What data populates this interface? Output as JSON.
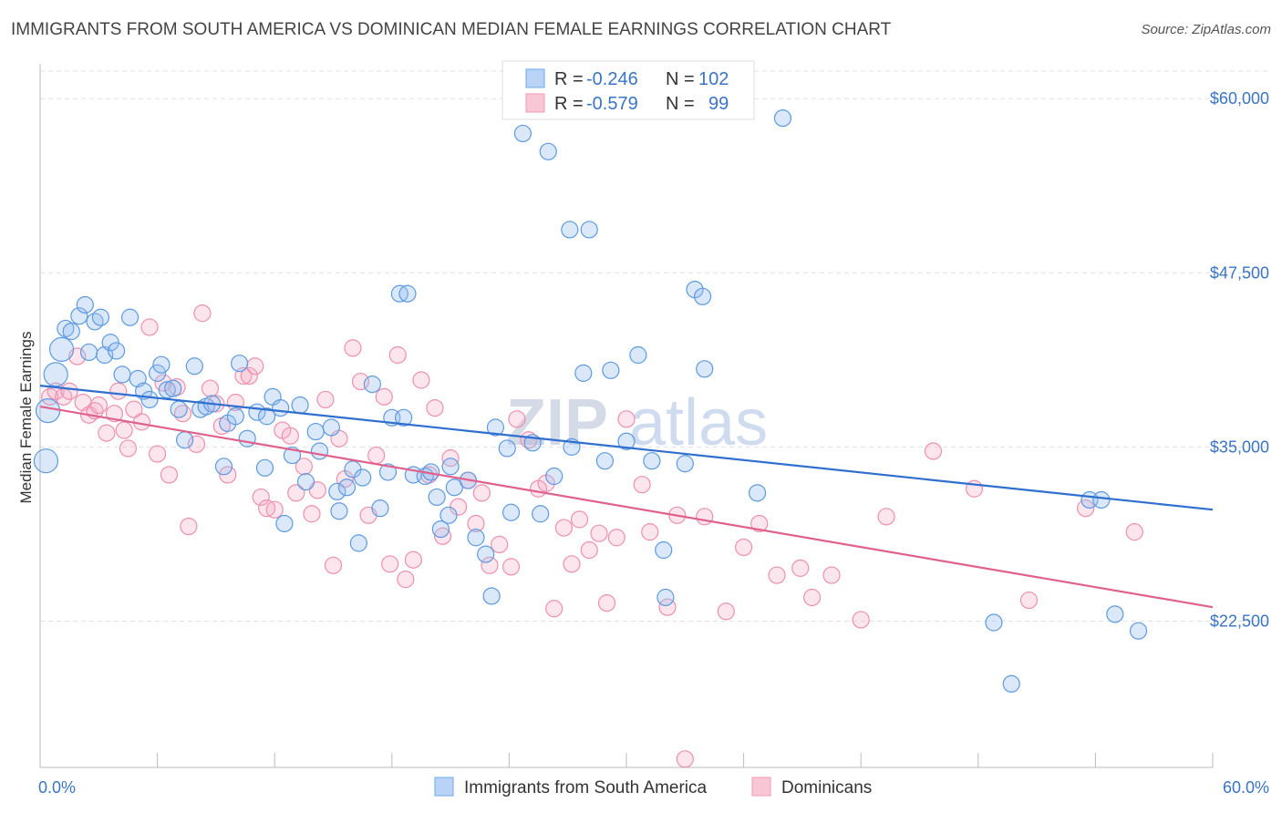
{
  "title": "IMMIGRANTS FROM SOUTH AMERICA VS DOMINICAN MEDIAN FEMALE EARNINGS CORRELATION CHART",
  "source": "Source: ZipAtlas.com",
  "watermark": {
    "zip": "ZIP",
    "atlas": "atlas"
  },
  "legend": {
    "rows": [
      {
        "r_label": "R =",
        "r_value": "-0.246",
        "n_label": "N =",
        "n_value": "102"
      },
      {
        "r_label": "R =",
        "r_value": "-0.579",
        "n_label": "N =",
        "n_value": "99"
      }
    ]
  },
  "chart_data": {
    "type": "scatter",
    "title": "IMMIGRANTS FROM SOUTH AMERICA VS DOMINICAN MEDIAN FEMALE EARNINGS CORRELATION CHART",
    "xlabel": "",
    "ylabel": "Median Female Earnings",
    "xlim": [
      0,
      60
    ],
    "ylim": [
      12000,
      62500
    ],
    "x_tick_labels": [
      "0.0%",
      "60.0%"
    ],
    "y_ticks": [
      22500,
      35000,
      47500,
      60000
    ],
    "y_tick_labels": [
      "$22,500",
      "$35,000",
      "$47,500",
      "$60,000"
    ],
    "grid": true,
    "legend_position": "top-center",
    "colors": {
      "blue": "#6fa8e8",
      "blue_line": "#2e6fd0",
      "pink": "#f19ab5",
      "pink_line": "#e0608e"
    },
    "series": [
      {
        "name": "Immigrants from South America",
        "r": -0.246,
        "n": 102,
        "trend": {
          "x": [
            0,
            60
          ],
          "y": [
            39400,
            30500
          ]
        },
        "points": [
          [
            0.3,
            34000
          ],
          [
            0.4,
            37600
          ],
          [
            0.8,
            40200
          ],
          [
            1.1,
            42000
          ],
          [
            1.3,
            43500
          ],
          [
            1.6,
            43300
          ],
          [
            2.0,
            44400
          ],
          [
            2.3,
            45200
          ],
          [
            2.5,
            41800
          ],
          [
            2.8,
            44000
          ],
          [
            3.1,
            44300
          ],
          [
            3.3,
            41600
          ],
          [
            3.6,
            42500
          ],
          [
            3.9,
            41900
          ],
          [
            4.2,
            40200
          ],
          [
            4.6,
            44300
          ],
          [
            5.0,
            39900
          ],
          [
            5.3,
            39000
          ],
          [
            5.6,
            38400
          ],
          [
            6.0,
            40300
          ],
          [
            6.2,
            40900
          ],
          [
            6.5,
            39100
          ],
          [
            6.8,
            39200
          ],
          [
            7.1,
            37700
          ],
          [
            7.4,
            35500
          ],
          [
            7.9,
            40800
          ],
          [
            8.2,
            37700
          ],
          [
            8.5,
            37900
          ],
          [
            8.8,
            38100
          ],
          [
            9.4,
            33600
          ],
          [
            9.6,
            36700
          ],
          [
            10.0,
            37200
          ],
          [
            10.6,
            35600
          ],
          [
            10.2,
            41000
          ],
          [
            11.1,
            37500
          ],
          [
            11.5,
            33500
          ],
          [
            11.6,
            37200
          ],
          [
            11.9,
            38600
          ],
          [
            12.3,
            37800
          ],
          [
            12.5,
            29500
          ],
          [
            12.9,
            34400
          ],
          [
            13.3,
            38000
          ],
          [
            13.6,
            32500
          ],
          [
            14.1,
            36100
          ],
          [
            14.3,
            34700
          ],
          [
            14.9,
            36400
          ],
          [
            15.2,
            31800
          ],
          [
            15.3,
            30400
          ],
          [
            15.7,
            32100
          ],
          [
            16.0,
            33400
          ],
          [
            16.3,
            28100
          ],
          [
            16.5,
            32800
          ],
          [
            17.0,
            39500
          ],
          [
            17.4,
            30600
          ],
          [
            17.8,
            33200
          ],
          [
            18.0,
            37100
          ],
          [
            18.4,
            46000
          ],
          [
            18.6,
            37100
          ],
          [
            18.8,
            46000
          ],
          [
            19.1,
            33000
          ],
          [
            19.7,
            32900
          ],
          [
            20.0,
            33200
          ],
          [
            20.3,
            31400
          ],
          [
            20.5,
            29100
          ],
          [
            20.9,
            30100
          ],
          [
            21.0,
            33600
          ],
          [
            21.2,
            32100
          ],
          [
            21.9,
            32600
          ],
          [
            22.3,
            28500
          ],
          [
            22.8,
            27300
          ],
          [
            23.1,
            24300
          ],
          [
            23.3,
            36400
          ],
          [
            23.9,
            34900
          ],
          [
            24.1,
            30300
          ],
          [
            24.7,
            57500
          ],
          [
            25.2,
            35300
          ],
          [
            25.6,
            30200
          ],
          [
            26.0,
            56200
          ],
          [
            26.3,
            32900
          ],
          [
            27.1,
            50600
          ],
          [
            27.2,
            35000
          ],
          [
            27.8,
            40300
          ],
          [
            28.1,
            50600
          ],
          [
            28.9,
            34000
          ],
          [
            29.2,
            40500
          ],
          [
            30.0,
            35400
          ],
          [
            30.6,
            41600
          ],
          [
            31.3,
            34000
          ],
          [
            31.9,
            27600
          ],
          [
            32.0,
            24200
          ],
          [
            33.0,
            33800
          ],
          [
            33.5,
            46300
          ],
          [
            33.9,
            45800
          ],
          [
            34.0,
            40600
          ],
          [
            36.7,
            31700
          ],
          [
            38.0,
            58600
          ],
          [
            48.8,
            22400
          ],
          [
            49.7,
            18000
          ],
          [
            53.7,
            31200
          ],
          [
            54.3,
            31200
          ],
          [
            55.0,
            23000
          ],
          [
            56.2,
            21800
          ]
        ]
      },
      {
        "name": "Dominicans",
        "r": -0.579,
        "n": 99,
        "trend": {
          "x": [
            0,
            60
          ],
          "y": [
            37900,
            23500
          ]
        },
        "points": [
          [
            0.5,
            38600
          ],
          [
            0.8,
            39000
          ],
          [
            1.2,
            38600
          ],
          [
            1.5,
            39000
          ],
          [
            1.9,
            41500
          ],
          [
            2.2,
            38200
          ],
          [
            2.5,
            37300
          ],
          [
            2.8,
            37600
          ],
          [
            3.0,
            38000
          ],
          [
            3.4,
            36000
          ],
          [
            3.8,
            37400
          ],
          [
            4.0,
            39000
          ],
          [
            4.3,
            36200
          ],
          [
            4.5,
            34900
          ],
          [
            4.8,
            37700
          ],
          [
            5.2,
            36800
          ],
          [
            5.6,
            43600
          ],
          [
            6.0,
            34500
          ],
          [
            6.3,
            39600
          ],
          [
            6.6,
            33000
          ],
          [
            7.0,
            39300
          ],
          [
            7.3,
            37400
          ],
          [
            7.6,
            29300
          ],
          [
            8.0,
            35200
          ],
          [
            8.3,
            44600
          ],
          [
            8.7,
            39200
          ],
          [
            9.0,
            38100
          ],
          [
            9.3,
            36500
          ],
          [
            9.6,
            33000
          ],
          [
            10.0,
            38200
          ],
          [
            10.4,
            40100
          ],
          [
            10.7,
            40100
          ],
          [
            11.0,
            40800
          ],
          [
            11.3,
            31400
          ],
          [
            11.6,
            30600
          ],
          [
            12.0,
            30500
          ],
          [
            12.4,
            36200
          ],
          [
            12.8,
            35800
          ],
          [
            13.1,
            31700
          ],
          [
            13.5,
            33600
          ],
          [
            13.9,
            30200
          ],
          [
            14.2,
            31900
          ],
          [
            14.6,
            38400
          ],
          [
            15.0,
            26500
          ],
          [
            15.3,
            35600
          ],
          [
            15.6,
            32700
          ],
          [
            16.0,
            42100
          ],
          [
            16.4,
            39700
          ],
          [
            16.8,
            30100
          ],
          [
            17.2,
            34400
          ],
          [
            17.6,
            38600
          ],
          [
            17.9,
            26600
          ],
          [
            18.3,
            41600
          ],
          [
            18.7,
            25500
          ],
          [
            19.1,
            26900
          ],
          [
            19.5,
            39800
          ],
          [
            19.9,
            33000
          ],
          [
            20.2,
            37800
          ],
          [
            20.6,
            28600
          ],
          [
            21.0,
            34200
          ],
          [
            21.4,
            30700
          ],
          [
            21.9,
            32600
          ],
          [
            22.3,
            29500
          ],
          [
            22.6,
            31700
          ],
          [
            23.0,
            26500
          ],
          [
            23.5,
            28000
          ],
          [
            24.1,
            26400
          ],
          [
            24.4,
            37000
          ],
          [
            25.0,
            35500
          ],
          [
            25.5,
            32000
          ],
          [
            25.9,
            32400
          ],
          [
            26.3,
            23400
          ],
          [
            26.8,
            29200
          ],
          [
            27.2,
            26600
          ],
          [
            27.6,
            29800
          ],
          [
            28.1,
            27600
          ],
          [
            28.6,
            28800
          ],
          [
            29.0,
            23800
          ],
          [
            29.5,
            28500
          ],
          [
            30.0,
            37000
          ],
          [
            30.8,
            32300
          ],
          [
            31.2,
            28900
          ],
          [
            32.1,
            23500
          ],
          [
            32.6,
            30100
          ],
          [
            33.0,
            12600
          ],
          [
            34.0,
            30000
          ],
          [
            35.1,
            23200
          ],
          [
            36.0,
            27800
          ],
          [
            36.8,
            29500
          ],
          [
            37.7,
            25800
          ],
          [
            38.9,
            26300
          ],
          [
            39.5,
            24200
          ],
          [
            40.5,
            25800
          ],
          [
            42.0,
            22600
          ],
          [
            43.3,
            30000
          ],
          [
            45.7,
            34700
          ],
          [
            47.8,
            32000
          ],
          [
            50.6,
            24000
          ],
          [
            53.5,
            30600
          ],
          [
            56.0,
            28900
          ]
        ]
      }
    ]
  },
  "bottom_legend": [
    "Immigrants from South America",
    "Dominicans"
  ]
}
